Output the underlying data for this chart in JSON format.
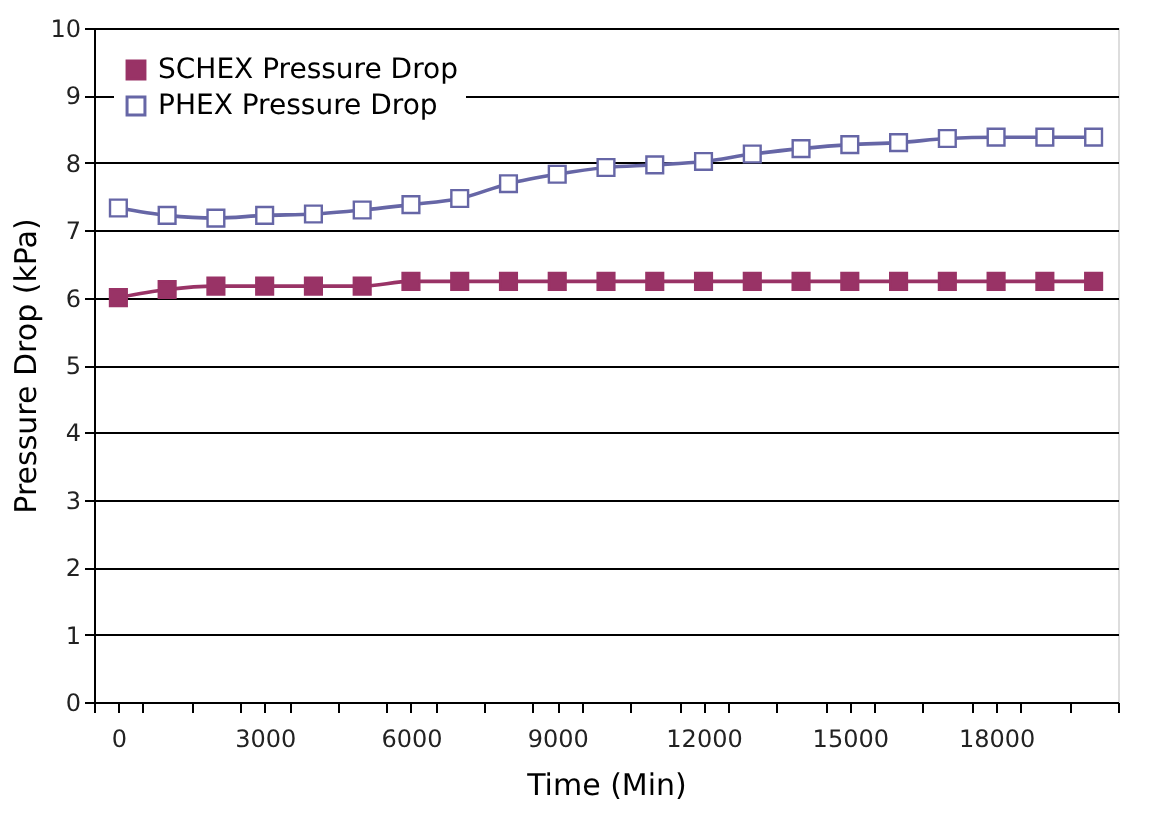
{
  "chart_data": {
    "type": "line",
    "xlabel": "Time (Min)",
    "ylabel": "Pressure Drop (kPa)",
    "x": [
      0,
      1000,
      2000,
      3000,
      4000,
      5000,
      6000,
      7000,
      8000,
      9000,
      10000,
      11000,
      12000,
      13000,
      14000,
      15000,
      16000,
      17000,
      18000,
      19000,
      20000
    ],
    "series": [
      {
        "name": "SCHEX Pressure Drop",
        "color": "#993366",
        "marker": "square",
        "values": [
          6.0,
          6.12,
          6.17,
          6.17,
          6.17,
          6.17,
          6.24,
          6.24,
          6.24,
          6.24,
          6.24,
          6.24,
          6.24,
          6.24,
          6.24,
          6.24,
          6.24,
          6.24,
          6.24,
          6.24,
          6.24
        ]
      },
      {
        "name": "PHEX Pressure Drop",
        "color": "#6666a6",
        "marker": "square",
        "values": [
          7.33,
          7.22,
          7.18,
          7.22,
          7.24,
          7.3,
          7.38,
          7.47,
          7.69,
          7.83,
          7.93,
          7.97,
          8.02,
          8.13,
          8.21,
          8.27,
          8.3,
          8.36,
          8.38,
          8.38,
          8.38
        ]
      }
    ],
    "xlim": [
      -500,
      20500
    ],
    "xticks": [
      {
        "value": -500,
        "label": null
      },
      0,
      {
        "value": 500,
        "label": null
      },
      {
        "value": 1500,
        "label": null
      },
      {
        "value": 2500,
        "label": null
      },
      3000,
      {
        "value": 3500,
        "label": null
      },
      {
        "value": 4500,
        "label": null
      },
      {
        "value": 5500,
        "label": null
      },
      6000,
      {
        "value": 6500,
        "label": null
      },
      {
        "value": 7500,
        "label": null
      },
      {
        "value": 8500,
        "label": null
      },
      9000,
      {
        "value": 9500,
        "label": null
      },
      {
        "value": 10500,
        "label": null
      },
      {
        "value": 11500,
        "label": null
      },
      12000,
      {
        "value": 12500,
        "label": null
      },
      {
        "value": 13500,
        "label": null
      },
      {
        "value": 14500,
        "label": null
      },
      15000,
      {
        "value": 15500,
        "label": null
      },
      {
        "value": 16500,
        "label": null
      },
      {
        "value": 17500,
        "label": null
      },
      18000,
      {
        "value": 18500,
        "label": null
      },
      {
        "value": 19500,
        "label": null
      },
      {
        "value": 20500,
        "label": null
      }
    ],
    "ylim": [
      0,
      10
    ],
    "yticks": [
      0,
      1,
      2,
      3,
      4,
      5,
      6,
      7,
      8,
      9,
      10
    ],
    "grid": "y",
    "legend": "top left",
    "line_style": "solid"
  }
}
